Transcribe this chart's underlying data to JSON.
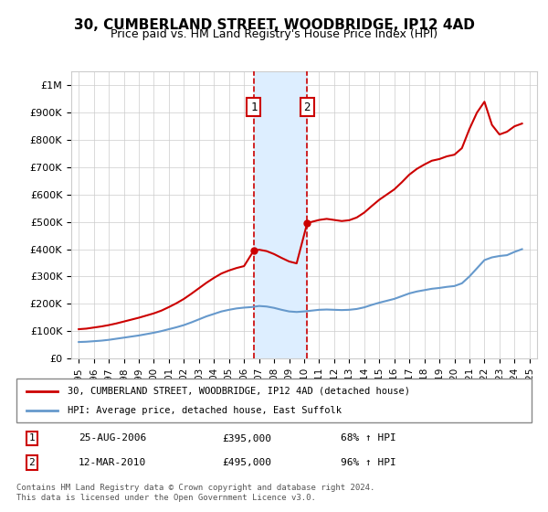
{
  "title": "30, CUMBERLAND STREET, WOODBRIDGE, IP12 4AD",
  "subtitle": "Price paid vs. HM Land Registry's House Price Index (HPI)",
  "legend_property": "30, CUMBERLAND STREET, WOODBRIDGE, IP12 4AD (detached house)",
  "legend_hpi": "HPI: Average price, detached house, East Suffolk",
  "footnote": "Contains HM Land Registry data © Crown copyright and database right 2024.\nThis data is licensed under the Open Government Licence v3.0.",
  "sale1_date": "25-AUG-2006",
  "sale1_price": "£395,000",
  "sale1_hpi": "68% ↑ HPI",
  "sale2_date": "12-MAR-2010",
  "sale2_price": "£495,000",
  "sale2_hpi": "96% ↑ HPI",
  "sale1_year": 2006.65,
  "sale2_year": 2010.2,
  "property_color": "#cc0000",
  "hpi_color": "#6699cc",
  "vline_color": "#cc0000",
  "shade_color": "#ddeeff",
  "ylim": [
    0,
    1050000
  ],
  "xlim_start": 1994.5,
  "xlim_end": 2025.5,
  "yticks": [
    0,
    100000,
    200000,
    300000,
    400000,
    500000,
    600000,
    700000,
    800000,
    900000,
    1000000
  ],
  "ytick_labels": [
    "£0",
    "£100K",
    "£200K",
    "£300K",
    "£400K",
    "£500K",
    "£600K",
    "£700K",
    "£800K",
    "£900K",
    "£1M"
  ],
  "hpi_x": [
    1995,
    1995.5,
    1996,
    1996.5,
    1997,
    1997.5,
    1998,
    1998.5,
    1999,
    1999.5,
    2000,
    2000.5,
    2001,
    2001.5,
    2002,
    2002.5,
    2003,
    2003.5,
    2004,
    2004.5,
    2005,
    2005.5,
    2006,
    2006.5,
    2007,
    2007.5,
    2008,
    2008.5,
    2009,
    2009.5,
    2010,
    2010.5,
    2011,
    2011.5,
    2012,
    2012.5,
    2013,
    2013.5,
    2014,
    2014.5,
    2015,
    2015.5,
    2016,
    2016.5,
    2017,
    2017.5,
    2018,
    2018.5,
    2019,
    2019.5,
    2020,
    2020.5,
    2021,
    2021.5,
    2022,
    2022.5,
    2023,
    2023.5,
    2024,
    2024.5
  ],
  "hpi_y": [
    60000,
    61000,
    63000,
    65000,
    68000,
    72000,
    76000,
    80000,
    84000,
    89000,
    94000,
    100000,
    107000,
    114000,
    122000,
    132000,
    143000,
    154000,
    163000,
    172000,
    178000,
    183000,
    186000,
    188000,
    192000,
    190000,
    185000,
    178000,
    172000,
    170000,
    172000,
    175000,
    178000,
    179000,
    178000,
    177000,
    178000,
    181000,
    187000,
    196000,
    204000,
    211000,
    218000,
    228000,
    238000,
    245000,
    250000,
    255000,
    258000,
    262000,
    265000,
    275000,
    300000,
    330000,
    360000,
    370000,
    375000,
    378000,
    390000,
    400000
  ],
  "prop_x": [
    1995,
    1995.5,
    1996,
    1996.5,
    1997,
    1997.5,
    1998,
    1998.5,
    1999,
    1999.5,
    2000,
    2000.5,
    2001,
    2001.5,
    2002,
    2002.5,
    2003,
    2003.5,
    2004,
    2004.5,
    2005,
    2005.5,
    2006,
    2006.65,
    2007,
    2007.5,
    2008,
    2008.5,
    2009,
    2009.5,
    2010.2,
    2010.5,
    2011,
    2011.5,
    2012,
    2012.5,
    2013,
    2013.5,
    2014,
    2014.5,
    2015,
    2015.5,
    2016,
    2016.5,
    2017,
    2017.5,
    2018,
    2018.5,
    2019,
    2019.5,
    2020,
    2020.5,
    2021,
    2021.5,
    2022,
    2022.5,
    2023,
    2023.5,
    2024,
    2024.5
  ],
  "prop_y": [
    107000,
    109000,
    113000,
    117000,
    122000,
    128000,
    135000,
    142000,
    149000,
    157000,
    165000,
    175000,
    188000,
    202000,
    218000,
    237000,
    257000,
    277000,
    295000,
    311000,
    322000,
    331000,
    338000,
    395000,
    398000,
    393000,
    382000,
    368000,
    355000,
    348000,
    495000,
    500000,
    507000,
    511000,
    507000,
    503000,
    506000,
    516000,
    534000,
    558000,
    581000,
    600000,
    619000,
    645000,
    673000,
    694000,
    710000,
    724000,
    730000,
    740000,
    746000,
    770000,
    840000,
    900000,
    940000,
    855000,
    820000,
    830000,
    850000,
    860000
  ]
}
